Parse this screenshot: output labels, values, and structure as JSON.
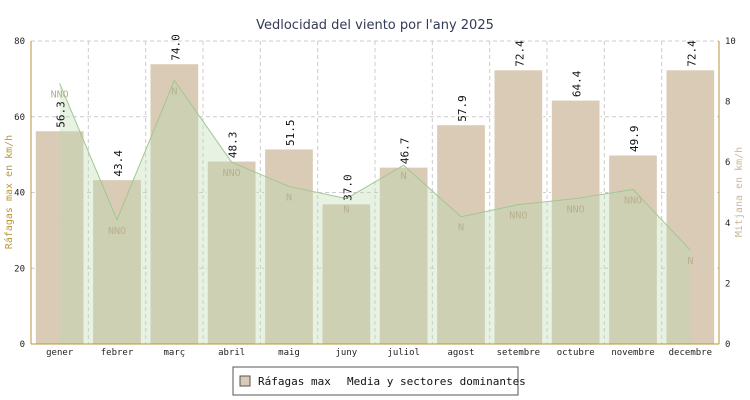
{
  "chart_data": {
    "type": "bar",
    "title": "Vedlocidad del viento por l'any 2025",
    "categories": [
      "gener",
      "febrer",
      "març",
      "abril",
      "maig",
      "juny",
      "juliol",
      "agost",
      "setembre",
      "octubre",
      "novembre",
      "decembre"
    ],
    "series": [
      {
        "name": "Ráfagas max",
        "axis": "left",
        "values": [
          56.3,
          43.4,
          74.0,
          48.3,
          51.5,
          37.0,
          46.7,
          57.9,
          72.4,
          64.4,
          49.9,
          72.4
        ],
        "value_labels": [
          "56.3",
          "43.4",
          "74.0",
          "48.3",
          "51.5",
          "37.0",
          "46.7",
          "57.9",
          "72.4",
          "64.4",
          "49.9",
          "72.4"
        ]
      },
      {
        "name": "Media y sectores dominantes",
        "axis": "right",
        "type": "area",
        "values": [
          8.6,
          4.1,
          8.7,
          6.0,
          5.2,
          4.8,
          5.9,
          4.2,
          4.6,
          4.8,
          5.1,
          3.1
        ],
        "sector_labels": [
          "NNO",
          "NNO",
          "N",
          "NNO",
          "N",
          "N",
          "N",
          "N",
          "NNO",
          "NNO",
          "NNO",
          "N"
        ]
      }
    ],
    "ylabel": "Ráfagas max en km/h",
    "y2label": "Mitjana en km/h",
    "ylim": [
      0,
      80
    ],
    "y2lim": [
      0,
      10
    ],
    "yticks": [
      "0",
      "20",
      "40",
      "60",
      "80"
    ],
    "y2ticks": [
      "0",
      "2",
      "4",
      "6",
      "8",
      "10"
    ],
    "grid": true,
    "legend_position": "bottom",
    "colors": {
      "bar_fill": "#d9cbb6",
      "bar_stroke": "#ffffff",
      "area_fill": "#b9d9b0",
      "area_line": "#a0c890",
      "grid": "#cccccc",
      "axis": "#b8963a"
    }
  },
  "legend": {
    "items": [
      {
        "label": "Ráfagas max",
        "swatch": "#d9cbb6"
      },
      {
        "label": "Media y sectores dominantes",
        "swatch": ""
      }
    ]
  }
}
